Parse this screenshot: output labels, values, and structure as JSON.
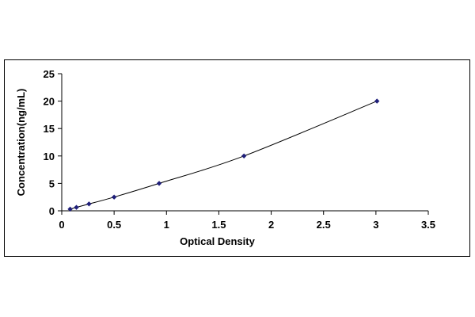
{
  "chart_data": {
    "type": "scatter",
    "title": "",
    "xlabel": "Optical Density",
    "ylabel": "Concentration(ng/mL)",
    "xlim": [
      0,
      3.5
    ],
    "ylim": [
      0,
      25
    ],
    "xticks": [
      "0",
      "0.5",
      "1",
      "1.5",
      "2",
      "2.5",
      "3",
      "3.5"
    ],
    "yticks": [
      "0",
      "5",
      "10",
      "15",
      "20",
      "25"
    ],
    "grid": false,
    "legend": "none",
    "marker": "diamond",
    "series_color": "#1f1f7a",
    "curve_color": "#000000",
    "trendline": true,
    "series": [
      {
        "points": [
          {
            "x": 0.08,
            "y": 0.31
          },
          {
            "x": 0.14,
            "y": 0.63
          },
          {
            "x": 0.26,
            "y": 1.25
          },
          {
            "x": 0.5,
            "y": 2.5
          },
          {
            "x": 0.93,
            "y": 5
          },
          {
            "x": 1.74,
            "y": 10
          },
          {
            "x": 3.01,
            "y": 20
          }
        ]
      }
    ]
  }
}
